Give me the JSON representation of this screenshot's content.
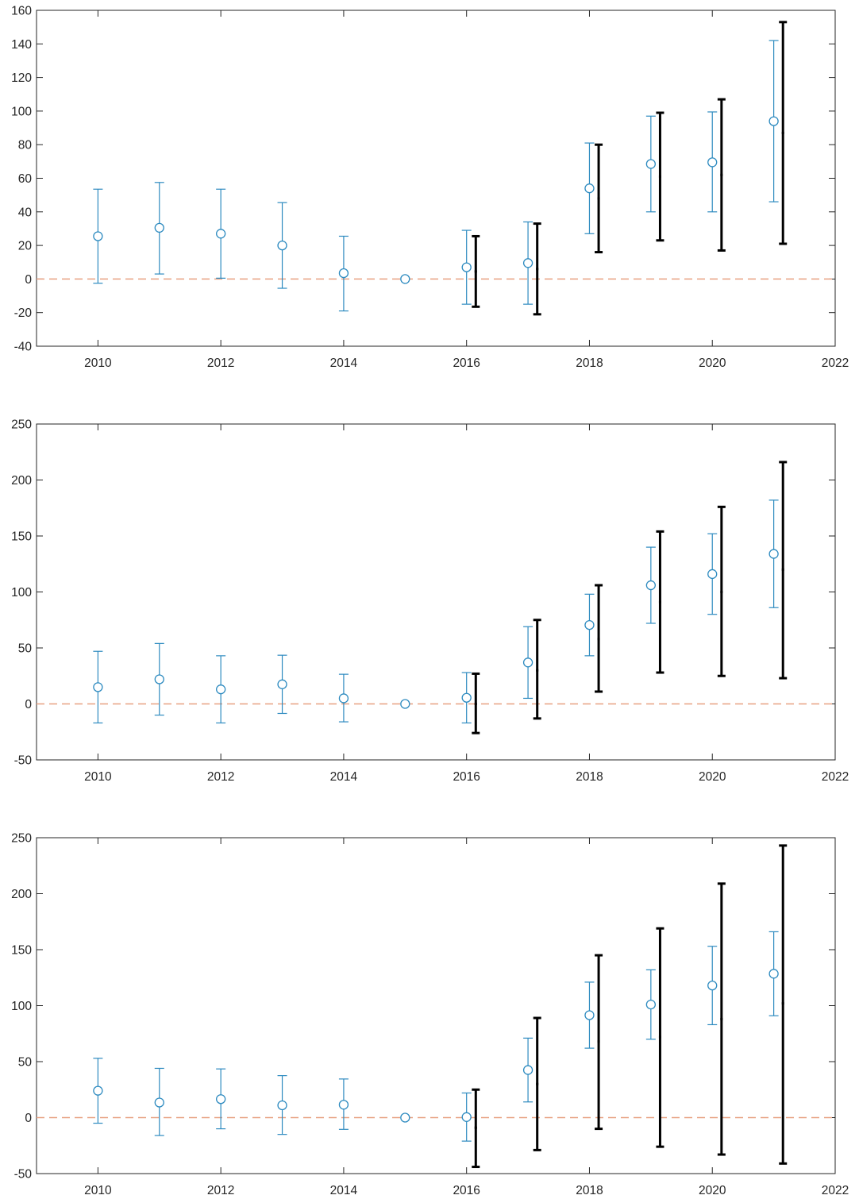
{
  "figure": {
    "zero_line_color": "#E8A182",
    "blue_color": "#2E8BC0",
    "black_color": "#000000"
  },
  "chart_data": [
    {
      "type": "errorbar",
      "xlim": [
        2009,
        2022
      ],
      "ylim": [
        -40,
        160
      ],
      "xticks": [
        2010,
        2012,
        2014,
        2016,
        2018,
        2020,
        2022
      ],
      "yticks": [
        -40,
        -20,
        0,
        20,
        40,
        60,
        80,
        100,
        120,
        140,
        160
      ],
      "zero_line": true,
      "series": [
        {
          "marker": "circle",
          "color": "#2E8BC0",
          "points": [
            {
              "x": 2010,
              "y": 25.5,
              "lo": -2.5,
              "hi": 53.5
            },
            {
              "x": 2011,
              "y": 30.5,
              "lo": 3,
              "hi": 57.5
            },
            {
              "x": 2012,
              "y": 27,
              "lo": 0.5,
              "hi": 53.5
            },
            {
              "x": 2013,
              "y": 20,
              "lo": -5.5,
              "hi": 45.5
            },
            {
              "x": 2014,
              "y": 3.5,
              "lo": -19,
              "hi": 25.5
            },
            {
              "x": 2015,
              "y": 0,
              "lo": 0,
              "hi": 0
            },
            {
              "x": 2016,
              "y": 7,
              "lo": -15,
              "hi": 29
            },
            {
              "x": 2017,
              "y": 9.5,
              "lo": -15,
              "hi": 34
            },
            {
              "x": 2018,
              "y": 54,
              "lo": 27,
              "hi": 81
            },
            {
              "x": 2019,
              "y": 68.5,
              "lo": 40,
              "hi": 97
            },
            {
              "x": 2020,
              "y": 69.5,
              "lo": 40,
              "hi": 99.5
            },
            {
              "x": 2021,
              "y": 94,
              "lo": 46,
              "hi": 142
            }
          ]
        },
        {
          "marker": "none",
          "color": "#000000",
          "points": [
            {
              "x": 2016.15,
              "y": 4.5,
              "lo": -16.5,
              "hi": 25.5
            },
            {
              "x": 2017.15,
              "y": 6,
              "lo": -21,
              "hi": 33
            },
            {
              "x": 2018.15,
              "y": 48,
              "lo": 16,
              "hi": 80
            },
            {
              "x": 2019.15,
              "y": 61,
              "lo": 23,
              "hi": 99
            },
            {
              "x": 2020.15,
              "y": 62,
              "lo": 17,
              "hi": 107
            },
            {
              "x": 2021.15,
              "y": 87,
              "lo": 21,
              "hi": 153
            }
          ]
        }
      ]
    },
    {
      "type": "errorbar",
      "xlim": [
        2009,
        2022
      ],
      "ylim": [
        -50,
        250
      ],
      "xticks": [
        2010,
        2012,
        2014,
        2016,
        2018,
        2020,
        2022
      ],
      "yticks": [
        -50,
        0,
        50,
        100,
        150,
        200,
        250
      ],
      "zero_line": true,
      "series": [
        {
          "marker": "circle",
          "color": "#2E8BC0",
          "points": [
            {
              "x": 2010,
              "y": 15,
              "lo": -17,
              "hi": 47
            },
            {
              "x": 2011,
              "y": 22,
              "lo": -10,
              "hi": 54
            },
            {
              "x": 2012,
              "y": 13,
              "lo": -17,
              "hi": 43
            },
            {
              "x": 2013,
              "y": 17.5,
              "lo": -8.5,
              "hi": 43.5
            },
            {
              "x": 2014,
              "y": 5,
              "lo": -16,
              "hi": 26.5
            },
            {
              "x": 2015,
              "y": 0,
              "lo": 0,
              "hi": 0
            },
            {
              "x": 2016,
              "y": 5.5,
              "lo": -17,
              "hi": 28
            },
            {
              "x": 2017,
              "y": 37,
              "lo": 5,
              "hi": 69
            },
            {
              "x": 2018,
              "y": 70.5,
              "lo": 43,
              "hi": 98
            },
            {
              "x": 2019,
              "y": 106,
              "lo": 72,
              "hi": 140
            },
            {
              "x": 2020,
              "y": 116,
              "lo": 80,
              "hi": 152
            },
            {
              "x": 2021,
              "y": 134,
              "lo": 86,
              "hi": 182
            }
          ]
        },
        {
          "marker": "none",
          "color": "#000000",
          "points": [
            {
              "x": 2016.15,
              "y": 0,
              "lo": -26,
              "hi": 27
            },
            {
              "x": 2017.15,
              "y": 30,
              "lo": -13,
              "hi": 75
            },
            {
              "x": 2018.15,
              "y": 58,
              "lo": 11,
              "hi": 106
            },
            {
              "x": 2019.15,
              "y": 91,
              "lo": 28,
              "hi": 154
            },
            {
              "x": 2020.15,
              "y": 100,
              "lo": 25,
              "hi": 176
            },
            {
              "x": 2021.15,
              "y": 120,
              "lo": 23,
              "hi": 216
            }
          ]
        }
      ]
    },
    {
      "type": "errorbar",
      "xlim": [
        2009,
        2022
      ],
      "ylim": [
        -50,
        250
      ],
      "xticks": [
        2010,
        2012,
        2014,
        2016,
        2018,
        2020,
        2022
      ],
      "yticks": [
        -50,
        0,
        50,
        100,
        150,
        200,
        250
      ],
      "zero_line": true,
      "series": [
        {
          "marker": "circle",
          "color": "#2E8BC0",
          "points": [
            {
              "x": 2010,
              "y": 24,
              "lo": -5,
              "hi": 53
            },
            {
              "x": 2011,
              "y": 13.5,
              "lo": -16,
              "hi": 44
            },
            {
              "x": 2012,
              "y": 16.5,
              "lo": -10,
              "hi": 43.5
            },
            {
              "x": 2013,
              "y": 11,
              "lo": -15,
              "hi": 37.5
            },
            {
              "x": 2014,
              "y": 11.5,
              "lo": -10.5,
              "hi": 34.5
            },
            {
              "x": 2015,
              "y": 0,
              "lo": 0,
              "hi": 0
            },
            {
              "x": 2016,
              "y": 0.5,
              "lo": -21,
              "hi": 22
            },
            {
              "x": 2017,
              "y": 42.5,
              "lo": 14,
              "hi": 71
            },
            {
              "x": 2018,
              "y": 91.5,
              "lo": 62,
              "hi": 121
            },
            {
              "x": 2019,
              "y": 101,
              "lo": 70,
              "hi": 132
            },
            {
              "x": 2020,
              "y": 118,
              "lo": 83,
              "hi": 153
            },
            {
              "x": 2021,
              "y": 128.5,
              "lo": 91,
              "hi": 166
            }
          ]
        },
        {
          "marker": "none",
          "color": "#000000",
          "points": [
            {
              "x": 2016.15,
              "y": -9,
              "lo": -44,
              "hi": 25
            },
            {
              "x": 2017.15,
              "y": 30,
              "lo": -29,
              "hi": 89
            },
            {
              "x": 2018.15,
              "y": 68,
              "lo": -10,
              "hi": 145
            },
            {
              "x": 2019.15,
              "y": 72,
              "lo": -26,
              "hi": 169
            },
            {
              "x": 2020.15,
              "y": 88,
              "lo": -33,
              "hi": 209
            },
            {
              "x": 2021.15,
              "y": 102,
              "lo": -41,
              "hi": 243
            }
          ]
        }
      ]
    }
  ]
}
